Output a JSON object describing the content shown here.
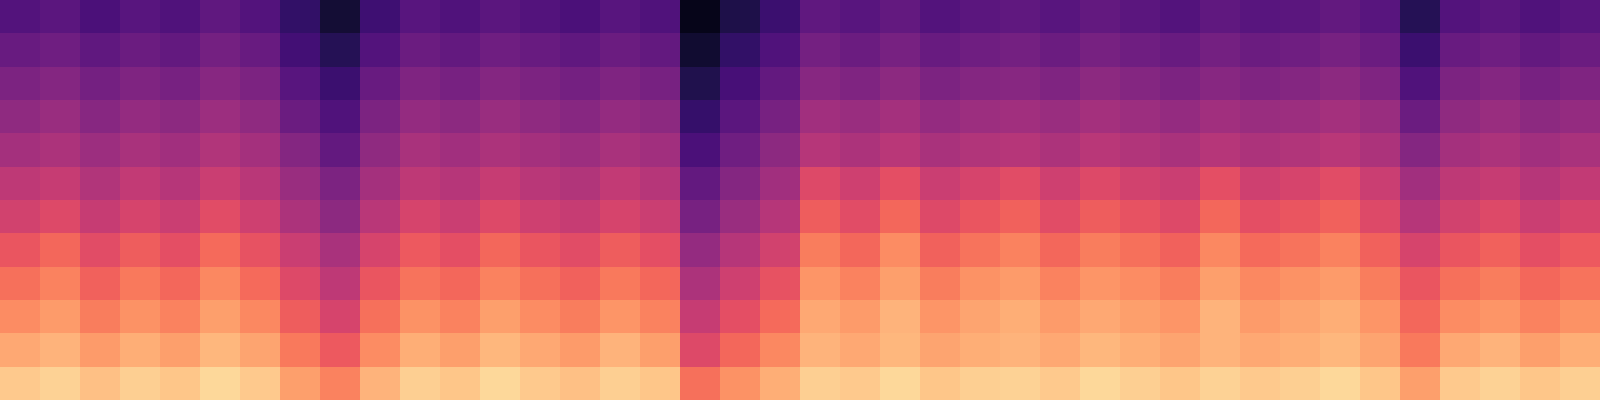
{
  "chart_data": {
    "type": "heatmap",
    "tick_labels": false,
    "zlim": [
      0,
      1
    ],
    "cells": [
      [
        0.26,
        0.28,
        0.24,
        0.27,
        0.25,
        0.29,
        0.26,
        0.18,
        0.1,
        0.21,
        0.27,
        0.25,
        0.28,
        0.26,
        0.24,
        0.27,
        0.25,
        0.05,
        0.13,
        0.2,
        0.29,
        0.27,
        0.3,
        0.26,
        0.28,
        0.29,
        0.27,
        0.3,
        0.28,
        0.26,
        0.29,
        0.27,
        0.28,
        0.3,
        0.27,
        0.15,
        0.26,
        0.28,
        0.25,
        0.27
      ],
      [
        0.31,
        0.33,
        0.29,
        0.32,
        0.3,
        0.34,
        0.31,
        0.22,
        0.15,
        0.26,
        0.32,
        0.3,
        0.33,
        0.31,
        0.29,
        0.32,
        0.3,
        0.09,
        0.18,
        0.25,
        0.34,
        0.32,
        0.35,
        0.31,
        0.33,
        0.34,
        0.32,
        0.35,
        0.33,
        0.31,
        0.34,
        0.32,
        0.33,
        0.35,
        0.32,
        0.2,
        0.31,
        0.33,
        0.3,
        0.32
      ],
      [
        0.36,
        0.38,
        0.34,
        0.37,
        0.35,
        0.39,
        0.36,
        0.27,
        0.2,
        0.31,
        0.37,
        0.35,
        0.38,
        0.36,
        0.34,
        0.37,
        0.35,
        0.14,
        0.23,
        0.3,
        0.39,
        0.37,
        0.4,
        0.36,
        0.38,
        0.39,
        0.37,
        0.4,
        0.38,
        0.36,
        0.39,
        0.37,
        0.38,
        0.4,
        0.37,
        0.25,
        0.36,
        0.38,
        0.35,
        0.37
      ],
      [
        0.41,
        0.43,
        0.39,
        0.42,
        0.4,
        0.44,
        0.41,
        0.32,
        0.25,
        0.36,
        0.42,
        0.4,
        0.43,
        0.41,
        0.39,
        0.42,
        0.4,
        0.19,
        0.28,
        0.35,
        0.45,
        0.43,
        0.46,
        0.42,
        0.44,
        0.45,
        0.43,
        0.46,
        0.44,
        0.42,
        0.45,
        0.43,
        0.44,
        0.46,
        0.43,
        0.32,
        0.41,
        0.43,
        0.4,
        0.42
      ],
      [
        0.46,
        0.48,
        0.44,
        0.47,
        0.45,
        0.49,
        0.46,
        0.38,
        0.3,
        0.41,
        0.47,
        0.45,
        0.48,
        0.46,
        0.44,
        0.47,
        0.45,
        0.24,
        0.33,
        0.4,
        0.5,
        0.48,
        0.51,
        0.47,
        0.49,
        0.5,
        0.48,
        0.51,
        0.49,
        0.47,
        0.5,
        0.48,
        0.49,
        0.51,
        0.48,
        0.38,
        0.46,
        0.48,
        0.45,
        0.47
      ],
      [
        0.52,
        0.54,
        0.49,
        0.53,
        0.5,
        0.55,
        0.51,
        0.43,
        0.36,
        0.46,
        0.52,
        0.5,
        0.54,
        0.51,
        0.49,
        0.53,
        0.5,
        0.3,
        0.38,
        0.45,
        0.6,
        0.56,
        0.62,
        0.55,
        0.58,
        0.61,
        0.56,
        0.6,
        0.57,
        0.55,
        0.62,
        0.56,
        0.58,
        0.61,
        0.55,
        0.45,
        0.52,
        0.54,
        0.5,
        0.53
      ],
      [
        0.57,
        0.6,
        0.54,
        0.58,
        0.55,
        0.61,
        0.56,
        0.48,
        0.4,
        0.51,
        0.58,
        0.55,
        0.6,
        0.56,
        0.54,
        0.58,
        0.55,
        0.35,
        0.43,
        0.5,
        0.66,
        0.61,
        0.68,
        0.6,
        0.64,
        0.67,
        0.61,
        0.66,
        0.63,
        0.6,
        0.68,
        0.62,
        0.64,
        0.67,
        0.6,
        0.5,
        0.57,
        0.6,
        0.55,
        0.58
      ],
      [
        0.64,
        0.68,
        0.61,
        0.66,
        0.62,
        0.69,
        0.63,
        0.55,
        0.47,
        0.58,
        0.65,
        0.62,
        0.68,
        0.64,
        0.61,
        0.66,
        0.62,
        0.42,
        0.5,
        0.57,
        0.73,
        0.68,
        0.76,
        0.67,
        0.71,
        0.74,
        0.68,
        0.73,
        0.7,
        0.67,
        0.75,
        0.69,
        0.71,
        0.74,
        0.67,
        0.58,
        0.64,
        0.67,
        0.62,
        0.65
      ],
      [
        0.7,
        0.74,
        0.67,
        0.72,
        0.68,
        0.75,
        0.69,
        0.6,
        0.52,
        0.64,
        0.71,
        0.68,
        0.74,
        0.7,
        0.67,
        0.72,
        0.68,
        0.48,
        0.56,
        0.63,
        0.78,
        0.74,
        0.8,
        0.73,
        0.77,
        0.79,
        0.74,
        0.78,
        0.76,
        0.73,
        0.8,
        0.75,
        0.77,
        0.79,
        0.73,
        0.64,
        0.7,
        0.73,
        0.68,
        0.71
      ],
      [
        0.76,
        0.79,
        0.73,
        0.77,
        0.74,
        0.8,
        0.75,
        0.66,
        0.58,
        0.7,
        0.77,
        0.74,
        0.8,
        0.76,
        0.73,
        0.78,
        0.74,
        0.54,
        0.62,
        0.69,
        0.82,
        0.79,
        0.84,
        0.78,
        0.81,
        0.83,
        0.79,
        0.82,
        0.8,
        0.78,
        0.84,
        0.79,
        0.81,
        0.83,
        0.78,
        0.68,
        0.76,
        0.78,
        0.74,
        0.77
      ],
      [
        0.82,
        0.84,
        0.79,
        0.83,
        0.8,
        0.85,
        0.81,
        0.72,
        0.65,
        0.76,
        0.83,
        0.8,
        0.85,
        0.82,
        0.79,
        0.84,
        0.8,
        0.6,
        0.68,
        0.75,
        0.84,
        0.82,
        0.85,
        0.81,
        0.83,
        0.84,
        0.82,
        0.85,
        0.83,
        0.81,
        0.84,
        0.82,
        0.83,
        0.85,
        0.81,
        0.72,
        0.82,
        0.84,
        0.8,
        0.83
      ],
      [
        0.89,
        0.91,
        0.87,
        0.9,
        0.88,
        0.92,
        0.89,
        0.8,
        0.74,
        0.84,
        0.9,
        0.88,
        0.92,
        0.89,
        0.87,
        0.9,
        0.88,
        0.7,
        0.77,
        0.83,
        0.9,
        0.89,
        0.92,
        0.88,
        0.9,
        0.91,
        0.89,
        0.92,
        0.9,
        0.88,
        0.91,
        0.89,
        0.9,
        0.92,
        0.88,
        0.8,
        0.89,
        0.91,
        0.88,
        0.9
      ]
    ]
  }
}
